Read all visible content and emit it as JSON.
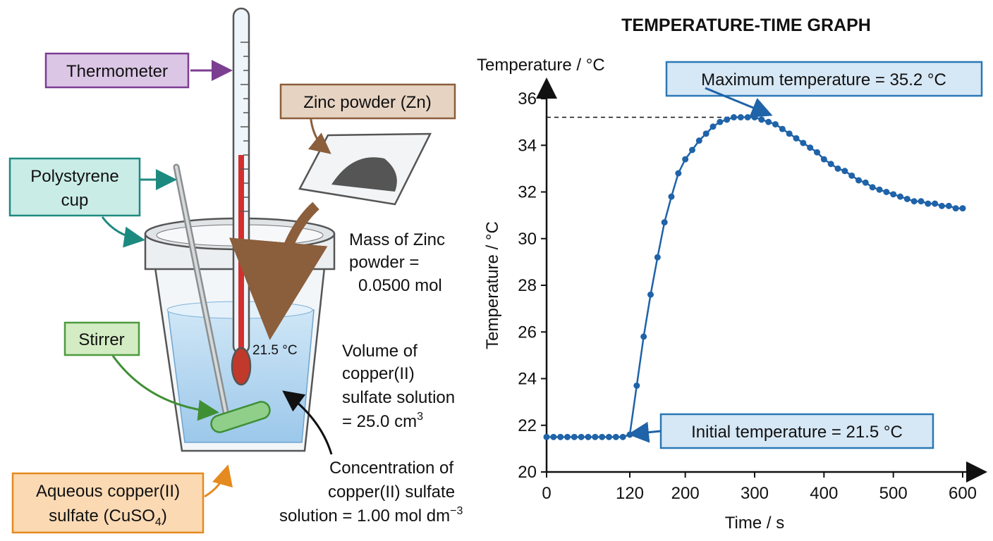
{
  "diagram": {
    "labels": {
      "thermometer": "Thermometer",
      "zinc_powder": "Zinc powder (Zn)",
      "polystyrene_cup": [
        "Polystyrene",
        "cup"
      ],
      "stirrer": "Stirrer",
      "solution": {
        "lines": [
          "Aqueous copper(II)",
          "sulfate (CuSO"
        ],
        "sub": "4",
        "end": ")"
      }
    },
    "reading": "21.5 °C",
    "notes": {
      "mass": [
        "Mass of Zinc",
        "powder =",
        "0.0500 mol"
      ],
      "volume": {
        "lines": [
          "Volume of",
          "copper(II)",
          "sulfate solution",
          "= 25.0 cm"
        ],
        "sup": "3"
      },
      "concentration": {
        "lines": [
          "Concentration of",
          "copper(II) sulfate",
          "solution = 1.00 mol dm"
        ],
        "sup": "−3"
      }
    }
  },
  "chart_data": {
    "type": "line",
    "title": "TEMPERATURE-TIME GRAPH",
    "y_axis_title": "Temperature / °C",
    "ylabel": "Temperature / °C",
    "xlabel": "Time / s",
    "xlim": [
      0,
      600
    ],
    "ylim": [
      20,
      36
    ],
    "xticks": [
      0,
      120,
      200,
      300,
      400,
      500,
      600
    ],
    "yticks": [
      20,
      22,
      24,
      26,
      28,
      30,
      32,
      34,
      36
    ],
    "hline": 35.2,
    "annotations": [
      "Maximum temperature = 35.2 °C",
      "Initial temperature = 21.5 °C"
    ],
    "x": [
      0,
      10,
      20,
      30,
      40,
      50,
      60,
      70,
      80,
      90,
      100,
      110,
      120,
      130,
      140,
      150,
      160,
      170,
      180,
      190,
      200,
      210,
      220,
      230,
      240,
      250,
      260,
      270,
      280,
      290,
      300,
      310,
      320,
      330,
      340,
      350,
      360,
      370,
      380,
      390,
      400,
      410,
      420,
      430,
      440,
      450,
      460,
      470,
      480,
      490,
      500,
      510,
      520,
      530,
      540,
      550,
      560,
      570,
      580,
      590,
      600
    ],
    "series": [
      {
        "name": "Temperature",
        "color": "#1f63a8",
        "values": [
          21.5,
          21.5,
          21.5,
          21.5,
          21.5,
          21.5,
          21.5,
          21.5,
          21.5,
          21.5,
          21.5,
          21.5,
          21.6,
          23.7,
          25.8,
          27.6,
          29.2,
          30.7,
          31.8,
          32.8,
          33.4,
          33.8,
          34.2,
          34.5,
          34.8,
          35.0,
          35.1,
          35.2,
          35.2,
          35.2,
          35.2,
          35.1,
          35.0,
          34.9,
          34.7,
          34.5,
          34.3,
          34.1,
          33.9,
          33.7,
          33.4,
          33.2,
          33.0,
          32.9,
          32.7,
          32.5,
          32.4,
          32.2,
          32.1,
          32.0,
          31.9,
          31.8,
          31.7,
          31.6,
          31.6,
          31.5,
          31.5,
          31.4,
          31.4,
          31.3,
          31.3
        ]
      }
    ]
  }
}
